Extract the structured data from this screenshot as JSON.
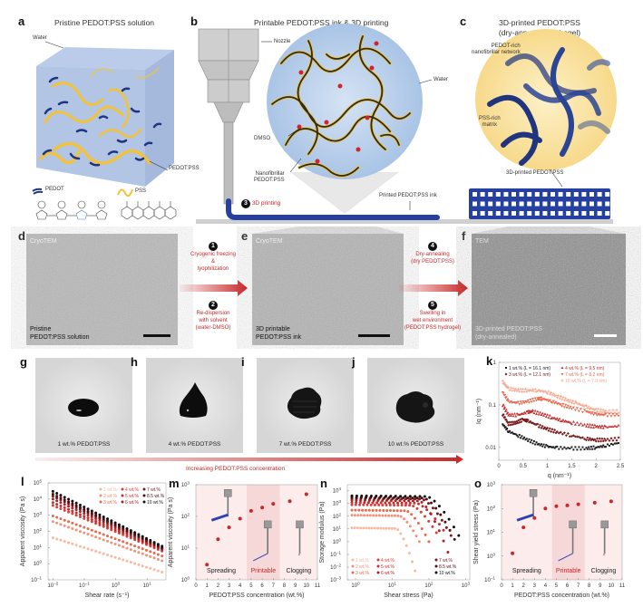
{
  "panels": {
    "a": {
      "label": "a",
      "title": "Pristine PEDOT:PSS solution",
      "water": "Water",
      "pedot_pss": "PEDOT:PSS",
      "legend_pedot": "PEDOT",
      "legend_pss": "PSS"
    },
    "b": {
      "label": "b",
      "title": "Printable PEDOT:PSS ink & 3D printing",
      "nozzle": "Nozzle",
      "water": "Water",
      "dmso": "DMSO",
      "nanofibrillar": [
        "Nanofibrillar",
        "PEDOT:PSS"
      ],
      "step3_num": "3",
      "step3": "3D printing",
      "printed_ink": "Printed PEDOT:PSS ink"
    },
    "c": {
      "label": "c",
      "title": [
        "3D-printed PEDOT:PSS",
        "(dry-annealed/hydrogel)"
      ],
      "network": [
        "PEDOT-rich",
        "nanofibrillar network"
      ],
      "matrix": [
        "PSS-rich",
        "matrix"
      ],
      "printed": "3D-printed PEDOT:PSS"
    },
    "d": {
      "label": "d",
      "tag": "CryoTEM",
      "caption": [
        "Pristine",
        "PEDOT:PSS solution"
      ]
    },
    "e": {
      "label": "e",
      "tag": "CryoTEM",
      "caption": [
        "3D printable",
        "PEDOT:PSS ink"
      ]
    },
    "f": {
      "label": "f",
      "tag": "TEM",
      "caption": [
        "3D-printed PEDOT:PSS",
        "(dry-annealed)"
      ]
    },
    "steps": [
      {
        "num": "1",
        "text": [
          "Cryogenic freezing",
          "&",
          "lyophilization"
        ]
      },
      {
        "num": "2",
        "text": [
          "Re-dispersion",
          "with solvent",
          "(water-DMSO)"
        ]
      },
      {
        "num": "4",
        "text": [
          "Dry-annealing",
          "(dry PEDOT:PSS)"
        ]
      },
      {
        "num": "5",
        "text": [
          "Swelling in",
          "wet environment",
          "(PEDOT:PSS hydrogel)"
        ]
      }
    ],
    "photos": [
      {
        "label": "g",
        "caption": "1 wt.% PEDOT:PSS"
      },
      {
        "label": "h",
        "caption": "4 wt.% PEDOT:PSS"
      },
      {
        "label": "i",
        "caption": "7 wt.% PEDOT:PSS"
      },
      {
        "label": "j",
        "caption": "10 wt.% PEDOT:PSS"
      }
    ],
    "increasing": "Increasing PEDOT:PSS concentration"
  },
  "colors": {
    "accent_red": "#c8282a",
    "pedot_blue": "#1f3580",
    "pss_yellow": "#f2c33a",
    "water_blue": "#aec6e6",
    "matrix_yellow": "#fbe6a8"
  },
  "chart_data": [
    {
      "id": "k",
      "label": "k",
      "type": "scatter",
      "xlabel": "q (nm⁻¹)",
      "ylabel": "Iq (nm⁻¹)",
      "xscale": "linear",
      "yscale": "log",
      "xlim": [
        0,
        2.5
      ],
      "ylim": [
        0.005,
        1
      ],
      "xticks": [
        {
          "v": 0,
          "t": "0"
        },
        {
          "v": 0.5,
          "t": "0.5"
        },
        {
          "v": 1,
          "t": "1"
        },
        {
          "v": 1.5,
          "t": "1.5"
        },
        {
          "v": 2,
          "t": "2"
        },
        {
          "v": 2.5,
          "t": "2.5"
        }
      ],
      "yticks": [
        {
          "v": 0.01,
          "t": "0.01"
        },
        {
          "v": 0.1,
          "t": "0.1"
        },
        {
          "v": 1,
          "t": "1"
        }
      ],
      "legend": "top",
      "series": [
        {
          "name": "1 wt.% (L = 16.1 nm)",
          "color": "#1a1a1a",
          "marker": "square",
          "x": [
            0.08,
            0.2,
            0.4,
            0.6,
            0.8,
            1.0,
            1.2,
            1.5,
            1.8,
            2.0,
            2.2,
            2.5
          ],
          "y": [
            0.035,
            0.024,
            0.019,
            0.015,
            0.012,
            0.0105,
            0.0098,
            0.0095,
            0.0095,
            0.01,
            0.011,
            0.013
          ]
        },
        {
          "name": "3 wt.% (L = 12.1 nm)",
          "color": "#7a1a1e",
          "marker": "diamond",
          "x": [
            0.08,
            0.2,
            0.35,
            0.5,
            0.6,
            0.8,
            1.0,
            1.2,
            1.5,
            1.8,
            2.0,
            2.2,
            2.5
          ],
          "y": [
            0.06,
            0.036,
            0.038,
            0.045,
            0.042,
            0.033,
            0.027,
            0.023,
            0.019,
            0.016,
            0.015,
            0.015,
            0.016
          ]
        },
        {
          "name": "4 wt.% (L = 9.5 nm)",
          "color": "#c62f2f",
          "marker": "triangle",
          "x": [
            0.08,
            0.2,
            0.4,
            0.6,
            0.7,
            0.9,
            1.1,
            1.3,
            1.5,
            1.8,
            2.0,
            2.2,
            2.5
          ],
          "y": [
            0.1,
            0.058,
            0.058,
            0.068,
            0.07,
            0.06,
            0.05,
            0.043,
            0.038,
            0.033,
            0.031,
            0.03,
            0.032
          ]
        },
        {
          "name": "7 wt.% (L = 8.2 nm)",
          "color": "#e8694f",
          "marker": "triangle-down",
          "x": [
            0.08,
            0.2,
            0.4,
            0.6,
            0.8,
            0.9,
            1.1,
            1.3,
            1.5,
            1.8,
            2.0,
            2.2,
            2.5
          ],
          "y": [
            0.2,
            0.12,
            0.11,
            0.12,
            0.14,
            0.14,
            0.12,
            0.1,
            0.085,
            0.07,
            0.06,
            0.058,
            0.058
          ]
        },
        {
          "name": "10 wt.% (L = 7.0 nm)",
          "color": "#f3a78e",
          "marker": "plus",
          "x": [
            0.08,
            0.2,
            0.4,
            0.6,
            0.8,
            1.0,
            1.2,
            1.4,
            1.6,
            1.8,
            2.0,
            2.2,
            2.5
          ],
          "y": [
            0.35,
            0.24,
            0.22,
            0.22,
            0.22,
            0.2,
            0.16,
            0.13,
            0.11,
            0.09,
            0.075,
            0.07,
            0.07
          ]
        }
      ]
    },
    {
      "id": "l",
      "label": "l",
      "type": "scatter",
      "xlabel": "Shear rate (s⁻¹)",
      "ylabel": "Apparent viscosity (Pa s)",
      "xscale": "log",
      "yscale": "log",
      "xlim": [
        0.007,
        40
      ],
      "ylim": [
        0.1,
        100000
      ],
      "xticks": [
        {
          "v": 0.01,
          "t": "10",
          "e": "−2"
        },
        {
          "v": 0.1,
          "t": "10",
          "e": "−1"
        },
        {
          "v": 1,
          "t": "10",
          "e": "0"
        },
        {
          "v": 10,
          "t": "10",
          "e": "1"
        }
      ],
      "yticks": [
        {
          "v": 0.1,
          "t": "10",
          "e": "−1"
        },
        {
          "v": 1,
          "t": "10",
          "e": "0"
        },
        {
          "v": 10,
          "t": "10",
          "e": "1"
        },
        {
          "v": 100,
          "t": "10",
          "e": "2"
        },
        {
          "v": 1000,
          "t": "10",
          "e": "3"
        },
        {
          "v": 10000,
          "t": "10",
          "e": "4"
        },
        {
          "v": 100000,
          "t": "10",
          "e": "5"
        }
      ],
      "legend": "top-right",
      "x_range": [
        0.01,
        30
      ],
      "series": [
        {
          "name": "1 wt.%",
          "color": "#f6b9a4",
          "y_at_range": [
            40,
            0.3
          ]
        },
        {
          "name": "2 wt.%",
          "color": "#f0937a",
          "y_at_range": [
            400,
            1.5
          ]
        },
        {
          "name": "3 wt.%",
          "color": "#e8694f",
          "y_at_range": [
            900,
            3
          ]
        },
        {
          "name": "4 wt.%",
          "color": "#d9403a",
          "y_at_range": [
            4000,
            6
          ]
        },
        {
          "name": "5 wt.%",
          "color": "#c62f2f",
          "y_at_range": [
            6000,
            7
          ]
        },
        {
          "name": "6 wt.%",
          "color": "#a82428",
          "y_at_range": [
            10000,
            8
          ]
        },
        {
          "name": "7 wt.%",
          "color": "#7d1a1e",
          "y_at_range": [
            15000,
            9
          ]
        },
        {
          "name": "8.5 wt.%",
          "color": "#4a1012",
          "y_at_range": [
            20000,
            10
          ]
        },
        {
          "name": "10 wt.%",
          "color": "#111111",
          "y_at_range": [
            30000,
            12
          ]
        }
      ]
    },
    {
      "id": "m",
      "label": "m",
      "type": "scatter",
      "xlabel": "PEDOT:PSS concentration (wt.%)",
      "ylabel": "Apparent viscosity (Pa s)",
      "xscale": "linear",
      "yscale": "log",
      "xlim": [
        0,
        11
      ],
      "ylim": [
        1,
        1000
      ],
      "xticks": [
        {
          "v": 0,
          "t": "0"
        },
        {
          "v": 1,
          "t": "1"
        },
        {
          "v": 2,
          "t": "2"
        },
        {
          "v": 3,
          "t": "3"
        },
        {
          "v": 4,
          "t": "4"
        },
        {
          "v": 5,
          "t": "5"
        },
        {
          "v": 6,
          "t": "6"
        },
        {
          "v": 7,
          "t": "7"
        },
        {
          "v": 8,
          "t": "8"
        },
        {
          "v": 9,
          "t": "9"
        },
        {
          "v": 10,
          "t": "10"
        },
        {
          "v": 11,
          "t": "11"
        }
      ],
      "yticks": [
        {
          "v": 1,
          "t": "10",
          "e": "0"
        },
        {
          "v": 10,
          "t": "10",
          "e": "1"
        },
        {
          "v": 100,
          "t": "10",
          "e": "2"
        },
        {
          "v": 1000,
          "t": "10",
          "e": "3"
        }
      ],
      "regions": [
        {
          "name": "Spreading",
          "from": 0,
          "to": 4.6
        },
        {
          "name": "Printable",
          "from": 4.6,
          "to": 7.6
        },
        {
          "name": "Clogging",
          "from": 7.6,
          "to": 11
        }
      ],
      "series": [
        {
          "color": "#c8282a",
          "x": [
            1,
            2,
            3,
            4,
            5,
            6,
            7,
            8.5,
            10
          ],
          "y": [
            3,
            19,
            45,
            85,
            150,
            190,
            250,
            300,
            500
          ]
        }
      ]
    },
    {
      "id": "n",
      "label": "n",
      "type": "scatter",
      "xlabel": "Shear stress (Pa)",
      "ylabel": "Storage modulus (Pa)",
      "xscale": "log",
      "yscale": "log",
      "xlim": [
        0.6,
        1300
      ],
      "ylim": [
        0.001,
        30000
      ],
      "xticks": [
        {
          "v": 1,
          "t": "10",
          "e": "0"
        },
        {
          "v": 10,
          "t": "10",
          "e": "1"
        },
        {
          "v": 100,
          "t": "10",
          "e": "2"
        },
        {
          "v": 1000,
          "t": "10",
          "e": "3"
        }
      ],
      "yticks": [
        {
          "v": 0.001,
          "t": "10",
          "e": "−3"
        },
        {
          "v": 0.01,
          "t": "10",
          "e": "−2"
        },
        {
          "v": 0.1,
          "t": "10",
          "e": "−1"
        },
        {
          "v": 1,
          "t": "10",
          "e": "0"
        },
        {
          "v": 10,
          "t": "10",
          "e": "1"
        },
        {
          "v": 100,
          "t": "10",
          "e": "2"
        },
        {
          "v": 1000,
          "t": "10",
          "e": "3"
        },
        {
          "v": 10000,
          "t": "10",
          "e": "4"
        }
      ],
      "legend": "bottom",
      "series": [
        {
          "name": "1 wt.%",
          "color": "#f6b9a4",
          "plateau": 12,
          "end_stress": 42,
          "end_modulus": 0.005
        },
        {
          "name": "2 wt.%",
          "color": "#f0937a",
          "plateau": 120,
          "end_stress": 55,
          "end_modulus": 1
        },
        {
          "name": "3 wt.%",
          "color": "#e8694f",
          "plateau": 300,
          "end_stress": 100,
          "end_modulus": 1
        },
        {
          "name": "4 wt.%",
          "color": "#d9403a",
          "plateau": 800,
          "end_stress": 160,
          "end_modulus": 5
        },
        {
          "name": "5 wt.%",
          "color": "#c62f2f",
          "plateau": 1200,
          "end_stress": 250,
          "end_modulus": 8
        },
        {
          "name": "6 wt.%",
          "color": "#a82428",
          "plateau": 1800,
          "end_stress": 330,
          "end_modulus": 0.15
        },
        {
          "name": "7 wt.%",
          "color": "#7d1a1e",
          "plateau": 2500,
          "end_stress": 400,
          "end_modulus": 3
        },
        {
          "name": "8.5 wt.%",
          "color": "#4a1012",
          "plateau": 3000,
          "end_stress": 500,
          "end_modulus": 1.5
        },
        {
          "name": "10 wt.%",
          "color": "#111111",
          "plateau": 4000,
          "end_stress": 650,
          "end_modulus": 3
        }
      ]
    },
    {
      "id": "o",
      "label": "o",
      "type": "scatter",
      "xlabel": "PEDOT:PSS concentration (wt.%)",
      "ylabel": "Shear yield stress (Pa)",
      "xscale": "linear",
      "yscale": "log",
      "xlim": [
        0,
        11
      ],
      "ylim": [
        0.1,
        1000
      ],
      "xticks": [
        {
          "v": 0,
          "t": "0"
        },
        {
          "v": 1,
          "t": "1"
        },
        {
          "v": 2,
          "t": "2"
        },
        {
          "v": 3,
          "t": "3"
        },
        {
          "v": 4,
          "t": "4"
        },
        {
          "v": 5,
          "t": "5"
        },
        {
          "v": 6,
          "t": "6"
        },
        {
          "v": 7,
          "t": "7"
        },
        {
          "v": 8,
          "t": "8"
        },
        {
          "v": 9,
          "t": "9"
        },
        {
          "v": 10,
          "t": "10"
        },
        {
          "v": 11,
          "t": "11"
        }
      ],
      "yticks": [
        {
          "v": 0.1,
          "t": "10",
          "e": "−1"
        },
        {
          "v": 1,
          "t": "10",
          "e": "0"
        },
        {
          "v": 10,
          "t": "10",
          "e": "1"
        },
        {
          "v": 100,
          "t": "10",
          "e": "2"
        },
        {
          "v": 1000,
          "t": "10",
          "e": "3"
        }
      ],
      "regions": [
        {
          "name": "Spreading",
          "from": 0,
          "to": 4.6
        },
        {
          "name": "Printable",
          "from": 4.6,
          "to": 7.6
        },
        {
          "name": "Clogging",
          "from": 7.6,
          "to": 11
        }
      ],
      "series": [
        {
          "color": "#c8282a",
          "x": [
            1,
            2,
            3,
            4,
            5,
            6,
            7,
            8.5,
            10
          ],
          "y": [
            1.3,
            16,
            40,
            100,
            125,
            135,
            150,
            175,
            200
          ]
        }
      ]
    }
  ]
}
